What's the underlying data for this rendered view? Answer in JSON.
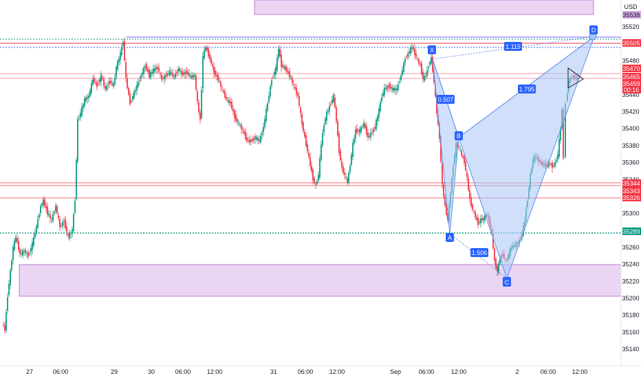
{
  "currency": "USD",
  "price_axis": {
    "ticks": [
      35520,
      35500,
      35480,
      35460,
      35440,
      35420,
      35400,
      35380,
      35360,
      35340,
      35320,
      35300,
      35280,
      35260,
      35240,
      35220,
      35200,
      35180,
      35160,
      35140
    ],
    "badges": [
      {
        "value": "35538",
        "color": "#d1a7e0",
        "text_color": "#131722"
      },
      {
        "value": "35505",
        "color": "#f23645",
        "text_color": "#ffffff"
      },
      {
        "value": "35470",
        "color": "#f23645",
        "text_color": "#ffffff"
      },
      {
        "value": "35465",
        "color": "#f23645",
        "text_color": "#ffffff"
      },
      {
        "value": "35459",
        "color": "#f23645",
        "text_color": "#ffffff"
      },
      {
        "value": "00:16",
        "color": "#f23645",
        "text_color": "#ffffff"
      },
      {
        "value": "35344",
        "color": "#f23645",
        "text_color": "#ffffff"
      },
      {
        "value": "35343",
        "color": "#f23645",
        "text_color": "#ffffff"
      },
      {
        "value": "35326",
        "color": "#f23645",
        "text_color": "#ffffff"
      },
      {
        "value": "35289",
        "color": "#089981",
        "text_color": "#ffffff"
      }
    ]
  },
  "time_axis": {
    "labels": [
      "27",
      "06:00",
      "29",
      "30",
      "06:00",
      "12:00",
      "31",
      "06:00",
      "12:00",
      "Sep",
      "06:00",
      "12:00",
      "2",
      "06:00",
      "12:00"
    ]
  },
  "pattern": {
    "points": [
      "X",
      "A",
      "B",
      "C",
      "D"
    ],
    "ratios": [
      "0.507",
      "1.506",
      "1.795",
      "1.115"
    ]
  },
  "colors": {
    "bull": "#089981",
    "bear": "#f23645",
    "pattern_fill": "#a8c4f5",
    "pattern_line": "#2962ff",
    "zone_fill": "#e7d4f0",
    "zone_border": "#c07ad6",
    "hline_red": "#f23645",
    "hline_green": "#089981",
    "hline_blue": "#2962ff"
  }
}
